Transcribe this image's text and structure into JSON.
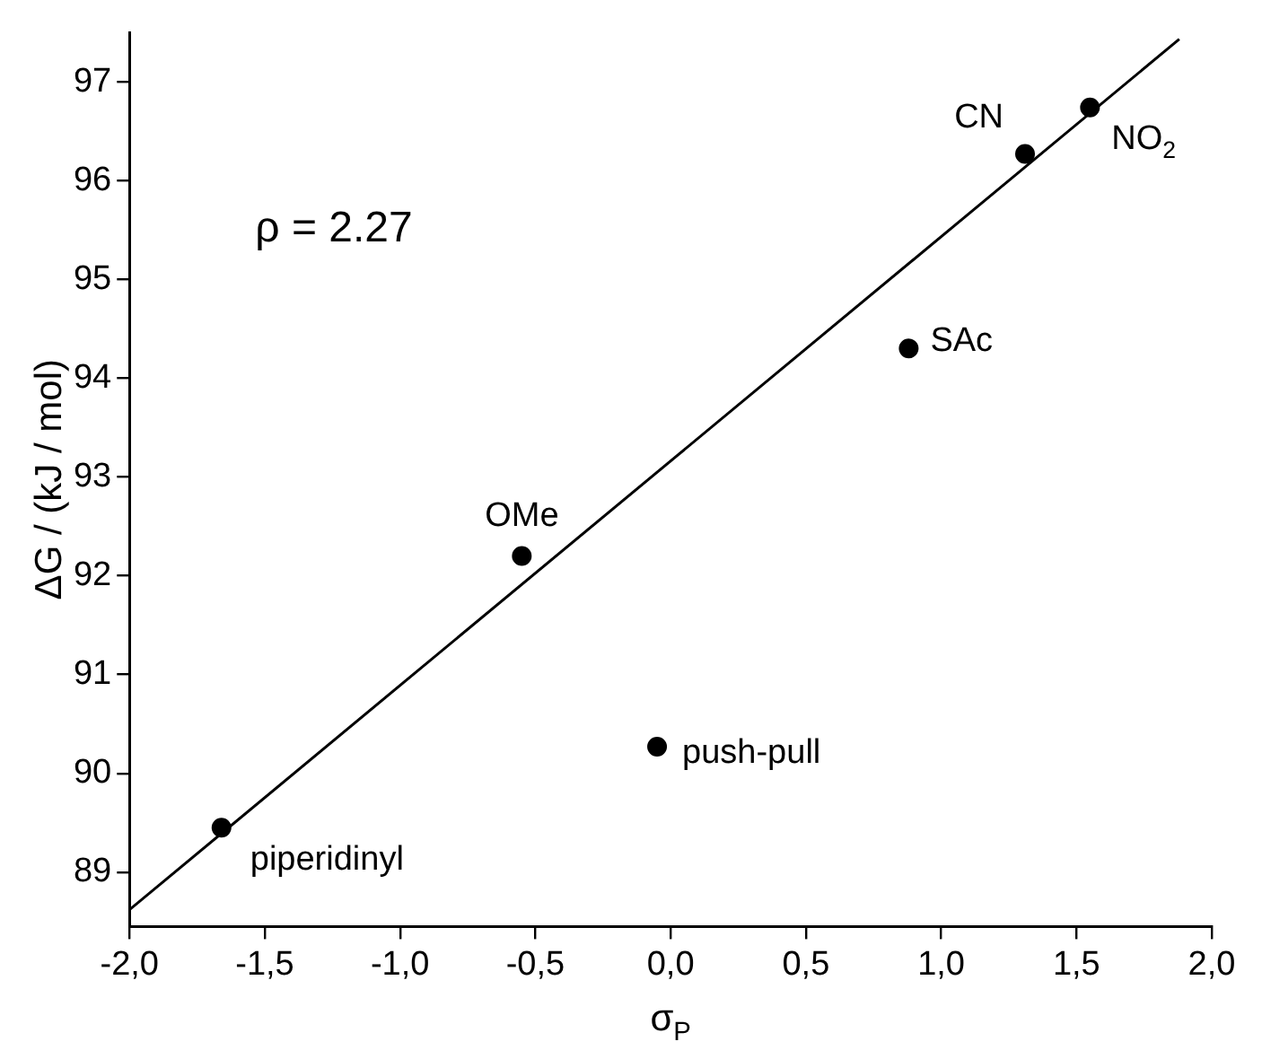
{
  "chart_data": {
    "type": "scatter",
    "xlabel": "σ$_{P}$",
    "ylabel": "ΔG / (kJ / mol)",
    "xlim": [
      -2,
      2
    ],
    "xticks": [
      {
        "value": -2,
        "label": "-2,0"
      },
      {
        "value": -1.5,
        "label": "-1,5"
      },
      {
        "value": -1,
        "label": "-1,0"
      },
      {
        "value": -0.5,
        "label": "-0,5"
      },
      {
        "value": 0,
        "label": "0,0"
      },
      {
        "value": 0.5,
        "label": "0,5"
      },
      {
        "value": 1,
        "label": "1,0"
      },
      {
        "value": 1.5,
        "label": "1,5"
      },
      {
        "value": 2,
        "label": "2,0"
      }
    ],
    "ylim": [
      88.45,
      97.5
    ],
    "yticks": [
      89,
      90,
      91,
      92,
      93,
      94,
      95,
      96,
      97
    ],
    "grid": false,
    "legend": false,
    "marker": "circle",
    "series": [
      {
        "color": "#000000",
        "x": [
          -1.66,
          -0.55,
          -0.05,
          0.88,
          1.31,
          1.55
        ],
        "values": [
          89.45,
          92.2,
          90.27,
          94.3,
          96.27,
          96.74
        ]
      },
      {
        "type": "line",
        "color": "#000000",
        "marker": "none",
        "line_style": "solid",
        "x": [
          -2,
          1.88
        ],
        "values": [
          88.62,
          97.43
        ]
      }
    ],
    "annotations": [
      {
        "text": "piperidinyl",
        "x": -1.66,
        "y": 89.45
      },
      {
        "text": "OMe",
        "x": -0.55,
        "y": 92.2
      },
      {
        "text": "push-pull",
        "x": -0.05,
        "y": 90.27
      },
      {
        "text": "SAc",
        "x": 0.88,
        "y": 94.3
      },
      {
        "text": "CN",
        "x": 1.31,
        "y": 96.27
      },
      {
        "text": "NO$_{2}$",
        "x": 1.55,
        "y": 96.74
      },
      "ρ = 2.27"
    ]
  }
}
